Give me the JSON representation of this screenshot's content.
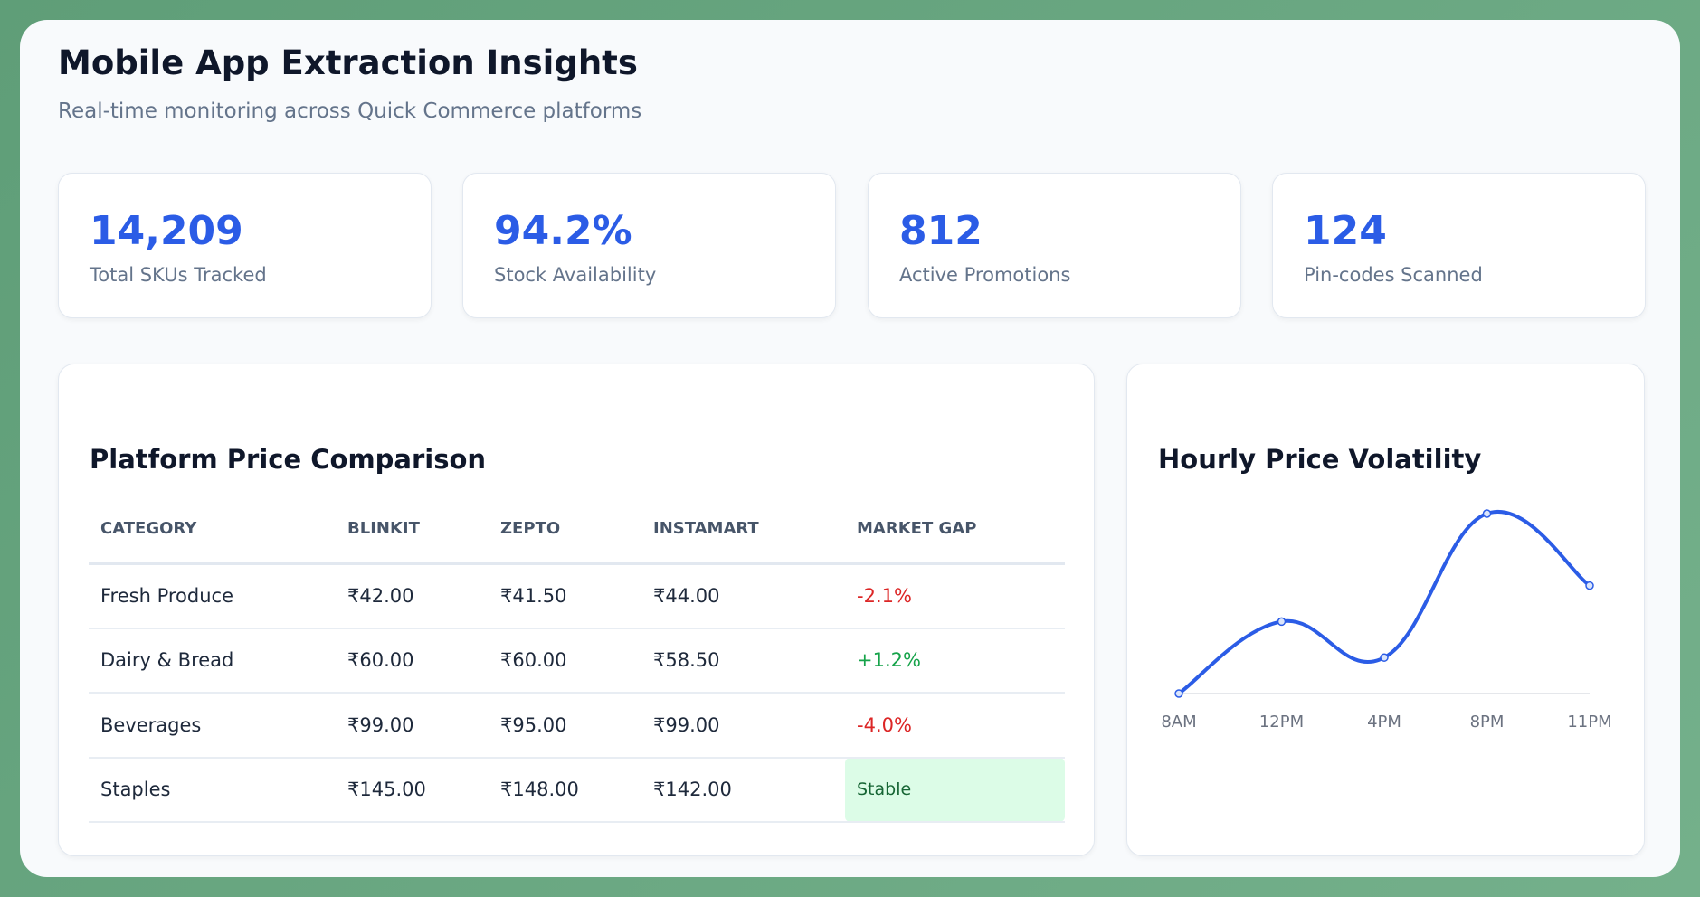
{
  "header": {
    "title": "Mobile App Extraction Insights",
    "subtitle": "Real-time monitoring across Quick Commerce platforms"
  },
  "stats": [
    {
      "value": "14,209",
      "label": "Total SKUs Tracked"
    },
    {
      "value": "94.2%",
      "label": "Stock Availability"
    },
    {
      "value": "812",
      "label": "Active Promotions"
    },
    {
      "value": "124",
      "label": "Pin-codes Scanned"
    }
  ],
  "table": {
    "title": "Platform Price Comparison",
    "columns": [
      "CATEGORY",
      "BLINKIT",
      "ZEPTO",
      "INSTAMART",
      "MARKET GAP"
    ],
    "rows": [
      [
        "Fresh Produce",
        "₹42.00",
        "₹41.50",
        "₹44.00",
        "-2.1%"
      ],
      [
        "Dairy & Bread",
        "₹60.00",
        "₹60.00",
        "₹58.50",
        "+1.2%"
      ],
      [
        "Beverages",
        "₹99.00",
        "₹95.00",
        "₹99.00",
        "-4.0%"
      ],
      [
        "Staples",
        "₹145.00",
        "₹148.00",
        "₹142.00",
        "Stable"
      ]
    ],
    "gap_status": [
      "negative",
      "positive",
      "negative",
      "stable"
    ]
  },
  "colors": {
    "accent": "#2b5ce6",
    "negative": "#dc2626",
    "positive": "#16a34a",
    "stable_bg": "#dcfce7"
  },
  "chart_data": {
    "type": "line",
    "title": "Hourly Price Volatility",
    "categories": [
      "8AM",
      "12PM",
      "4PM",
      "8PM",
      "11PM"
    ],
    "values": [
      0,
      40,
      20,
      100,
      60
    ],
    "smooth": true,
    "grid": false,
    "y_axis_shown": false,
    "color": "#2b5ce6"
  }
}
